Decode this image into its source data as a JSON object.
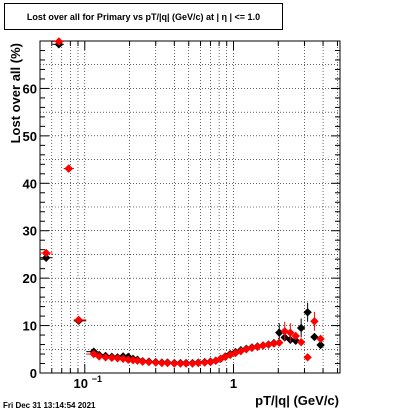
{
  "title": "Lost over all for Primary vs pT/|q| (GeV/c) at |  η | <= 1.0",
  "timestamp": "Fri Dec 31 13:14:54 2021",
  "chart_data": {
    "type": "scatter",
    "title": "Lost over all for Primary vs pT/|q| (GeV/c) at |  η | <= 1.0",
    "xlabel": "pT/|q| (GeV/c)",
    "ylabel": "Lost over all (%)",
    "x_scale": "log",
    "xlim": [
      0.05,
      5.2
    ],
    "ylim": [
      0,
      70
    ],
    "x_ticks": [
      {
        "value": 0.1,
        "label": "10",
        "exp": "−1"
      },
      {
        "value": 1,
        "label": "1",
        "exp": ""
      }
    ],
    "y_ticks": [
      0,
      10,
      20,
      30,
      40,
      50,
      60
    ],
    "grid": true,
    "series": [
      {
        "color": "#000000",
        "marker": "diamond",
        "points": [
          {
            "x": 0.055,
            "y": 24.3
          },
          {
            "x": 0.067,
            "y": 69.3
          },
          {
            "x": 0.078,
            "y": 43.1
          },
          {
            "x": 0.091,
            "y": 11.0
          },
          {
            "x": 0.115,
            "y": 4.5
          },
          {
            "x": 0.125,
            "y": 3.8
          },
          {
            "x": 0.138,
            "y": 3.6
          },
          {
            "x": 0.152,
            "y": 3.4
          },
          {
            "x": 0.166,
            "y": 3.3
          },
          {
            "x": 0.181,
            "y": 3.5
          },
          {
            "x": 0.196,
            "y": 3.4
          },
          {
            "x": 0.211,
            "y": 3.0
          },
          {
            "x": 0.226,
            "y": 2.8
          },
          {
            "x": 0.245,
            "y": 2.5
          },
          {
            "x": 0.27,
            "y": 2.4
          },
          {
            "x": 0.3,
            "y": 2.3
          },
          {
            "x": 0.33,
            "y": 2.2
          },
          {
            "x": 0.36,
            "y": 2.2
          },
          {
            "x": 0.4,
            "y": 2.1
          },
          {
            "x": 0.44,
            "y": 2.1
          },
          {
            "x": 0.48,
            "y": 2.1
          },
          {
            "x": 0.53,
            "y": 2.1
          },
          {
            "x": 0.58,
            "y": 2.2
          },
          {
            "x": 0.64,
            "y": 2.3
          },
          {
            "x": 0.7,
            "y": 2.4
          },
          {
            "x": 0.76,
            "y": 2.6
          },
          {
            "x": 0.82,
            "y": 3.0
          },
          {
            "x": 0.88,
            "y": 3.5
          },
          {
            "x": 0.95,
            "y": 4.0
          },
          {
            "x": 1.03,
            "y": 4.4
          },
          {
            "x": 1.12,
            "y": 4.8
          },
          {
            "x": 1.22,
            "y": 5.1
          },
          {
            "x": 1.33,
            "y": 5.4
          },
          {
            "x": 1.45,
            "y": 5.6
          },
          {
            "x": 1.58,
            "y": 5.8
          },
          {
            "x": 1.72,
            "y": 6.0
          },
          {
            "x": 1.87,
            "y": 6.3
          },
          {
            "x": 2.03,
            "y": 8.5
          },
          {
            "x": 2.21,
            "y": 7.5
          },
          {
            "x": 2.41,
            "y": 7.0
          },
          {
            "x": 2.62,
            "y": 6.8
          },
          {
            "x": 2.85,
            "y": 9.5
          },
          {
            "x": 3.15,
            "y": 12.8
          },
          {
            "x": 3.5,
            "y": 7.6
          },
          {
            "x": 3.85,
            "y": 5.9
          }
        ]
      },
      {
        "color": "#ff0000",
        "marker": "diamond",
        "points": [
          {
            "x": 0.055,
            "y": 25.3
          },
          {
            "x": 0.067,
            "y": 69.9
          },
          {
            "x": 0.078,
            "y": 43.1
          },
          {
            "x": 0.091,
            "y": 11.2
          },
          {
            "x": 0.115,
            "y": 4.0
          },
          {
            "x": 0.125,
            "y": 3.5
          },
          {
            "x": 0.138,
            "y": 3.3
          },
          {
            "x": 0.152,
            "y": 3.2
          },
          {
            "x": 0.166,
            "y": 3.1
          },
          {
            "x": 0.181,
            "y": 3.0
          },
          {
            "x": 0.196,
            "y": 2.8
          },
          {
            "x": 0.211,
            "y": 2.7
          },
          {
            "x": 0.226,
            "y": 2.6
          },
          {
            "x": 0.245,
            "y": 2.4
          },
          {
            "x": 0.27,
            "y": 2.3
          },
          {
            "x": 0.3,
            "y": 2.2
          },
          {
            "x": 0.33,
            "y": 2.1
          },
          {
            "x": 0.36,
            "y": 2.1
          },
          {
            "x": 0.4,
            "y": 2.0
          },
          {
            "x": 0.44,
            "y": 2.0
          },
          {
            "x": 0.48,
            "y": 2.0
          },
          {
            "x": 0.53,
            "y": 2.0
          },
          {
            "x": 0.58,
            "y": 2.1
          },
          {
            "x": 0.64,
            "y": 2.2
          },
          {
            "x": 0.7,
            "y": 2.3
          },
          {
            "x": 0.76,
            "y": 2.6
          },
          {
            "x": 0.82,
            "y": 3.0
          },
          {
            "x": 0.88,
            "y": 3.4
          },
          {
            "x": 0.95,
            "y": 3.8
          },
          {
            "x": 1.03,
            "y": 4.2
          },
          {
            "x": 1.12,
            "y": 4.6
          },
          {
            "x": 1.22,
            "y": 5.0
          },
          {
            "x": 1.33,
            "y": 5.3
          },
          {
            "x": 1.45,
            "y": 5.5
          },
          {
            "x": 1.58,
            "y": 5.8
          },
          {
            "x": 1.72,
            "y": 6.0
          },
          {
            "x": 1.87,
            "y": 6.2
          },
          {
            "x": 2.03,
            "y": 6.4
          },
          {
            "x": 2.21,
            "y": 8.8
          },
          {
            "x": 2.41,
            "y": 8.5
          },
          {
            "x": 2.62,
            "y": 7.8
          },
          {
            "x": 2.85,
            "y": 6.5
          },
          {
            "x": 3.15,
            "y": 3.3
          },
          {
            "x": 3.5,
            "y": 10.9
          },
          {
            "x": 3.85,
            "y": 7.2
          }
        ]
      }
    ]
  }
}
